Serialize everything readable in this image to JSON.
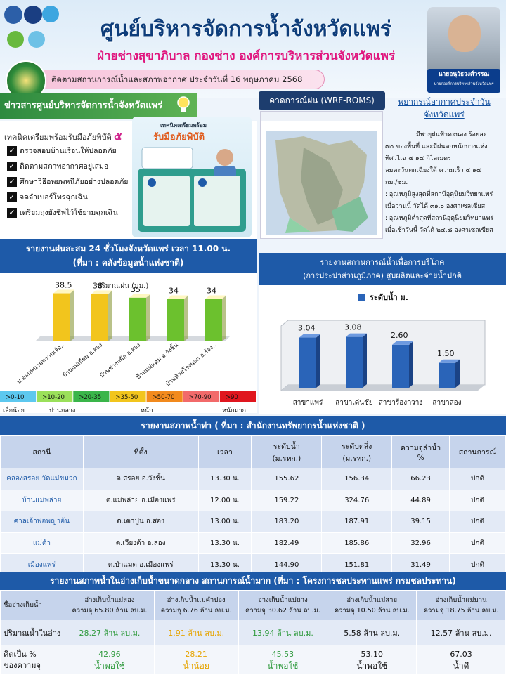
{
  "header": {
    "main_title": "ศูนย์บริหารจัดการน้ำจังหวัดแพร่",
    "sub_title": "ฝ่ายช่างสุขาภิบาล กองช่าง องค์การบริหารส่วนจังหวัดแพร่",
    "date_line": "ติดตามสถานการณ์น้ำและสภาพอากาศ ประจำวันที่ 16 พฤษภาคม 2568",
    "governor_name": "นายอนุวัธวงศ์วรรณ",
    "governor_position": "นายกองค์การบริหารส่วนจังหวัดแพร่"
  },
  "news": {
    "title": "ข่าวสารศูนย์บริหารจัดการน้ำจังหวัดแพร่",
    "intro": "เทคนิคเตรียมพร้อมรับมือภัยพิบัติ",
    "intro_num": "๕",
    "items": [
      "ตรวจสอบบ้านเรือนให้ปลอดภัย",
      "ติดตามสภาพอากาศอยู่เสมอ",
      "ศึกษาวิธีอพยพหนีภัยอย่างปลอดภัย",
      "จดจำเบอร์โทรฉุกเฉิน",
      "เตรียมถุงยังชีพไว้ใช้ยามฉุกเฉิน"
    ],
    "poster_line1": "เทคนิคเตรียมพร้อม",
    "poster_line2": "รับมือภัยพิบัติ"
  },
  "wrf": {
    "title": "คาดการณ์ฝน (WRF-ROMS)"
  },
  "forecast": {
    "title": "พยากรณ์อากาศประจำวัน จังหวัดแพร่",
    "lines": [
      "มีพายุฝนฟ้าคะนอง ร้อยละ",
      "๗๐ ของพื้นที่ และมีฝนตกหนักบางแห่ง",
      "ทิศวไเฉ ๔ ๑๕ กิโลเมตร",
      "ลมตะวันตกเฉียงใต้  ความเร็ว ๕ ๑๕",
      "กม./ชม.",
      ": อุณหภูมิสูงสุดที่สถานีอุตุนิยมวิทยาแพร่",
      "เมื่อวานนี้ วัดได้ ๓๑.๐ องศาเซลเซียส",
      ": อุณหภูมิต่ำสุดที่สถานีอุตุนิยมวิทยาแพร่",
      "เมื่อเช้าวันนี้ วัดได้ ๒๔.๘ องศาเซลเซียส"
    ]
  },
  "rain_chart": {
    "title_line1": "รายงานฝนสะสม 24 ชั่วโมงจังหวัดแพร่ เวลา 11.00 น.",
    "title_line2": "(ที่มา : คลังข้อมูลน้ำแห่งชาติ)",
    "legend": ">0-10",
    "legend_items": [
      ">0-10",
      ">10-20",
      ">20-35",
      ">35-50",
      ">50-70",
      ">70-90",
      ">90"
    ],
    "legend_groups": [
      "เล็กน้อย",
      "ปานกลาง",
      "หนัก",
      "หนักมาก"
    ]
  },
  "supply_chart": {
    "title_line1": "รายงานสถานการณ์น้ำเพื่อการบริโภค",
    "title_line2": "(การประปาส่วนภูมิภาค) สูบผลิตและจ่ายน้ำปกติ"
  },
  "chart_data": [
    {
      "type": "bar",
      "categories": [
        "บ.ดอกหนามหวานเจ้อ..",
        "บ้านแม่เกี่ยม อ.สอง",
        "บ้านช่างหม้อ อ.สอง",
        "บ้านแม่แคม อ.วังชิ้น",
        "บ้านห้วยโรงนอก อ.ร้อง.."
      ],
      "series": [
        {
          "name": "ปริมาณฝน (มม.)",
          "values": [
            38.5,
            38,
            35,
            34,
            34
          ]
        }
      ],
      "colors": [
        "#f2c51d",
        "#f2c51d",
        "#6cc12e",
        "#6cc12e",
        "#6cc12e"
      ],
      "ylim": [
        0,
        45
      ]
    },
    {
      "type": "bar",
      "categories": [
        "สาขาแพร่",
        "สาขาเด่นชัย",
        "สาขาร้องกวาง",
        "สาขาสอง"
      ],
      "series": [
        {
          "name": "ระดับน้ำ ม.",
          "values": [
            3.04,
            3.08,
            2.6,
            1.5
          ]
        }
      ],
      "value_labels": [
        "3.04",
        "3.08",
        "2.60",
        "1.50"
      ],
      "ylim": [
        0,
        4
      ]
    }
  ],
  "table1": {
    "title": "รายงานสภาพน้ำท่า  ( ที่มา : สำนักงานทรัพยากรน้ำแห่งชาติ  )",
    "headers": [
      "สถานี",
      "ที่ตั้ง",
      "เวลา",
      "ระดับน้ำ\n(ม.รทก.)",
      "ระดับตลิ่ง\n(ม.รทก.)",
      "ความจุลำน้ำ\n%",
      "สถานการณ์"
    ],
    "rows": [
      [
        "คลองสรอย วัดแม่ขมวก",
        "ต.สรอย อ.วังชิ้น",
        "13.30 น.",
        "155.62",
        "156.34",
        "66.23",
        "ปกติ"
      ],
      [
        "บ้านแม่พล่าย",
        "ต.แม่พล่าย อ.เมืองแพร่",
        "12.00 น.",
        "159.22",
        "324.76",
        "44.89",
        "ปกติ"
      ],
      [
        "ศาลเจ้าพ่อพญาอ้น",
        "ต.เตาปูน อ.สอง",
        "13.00 น.",
        "183.20",
        "187.91",
        "39.15",
        "ปกติ"
      ],
      [
        "แม่ต้า",
        "ต.เวียงต้า อ.ลอง",
        "13.30 น.",
        "182.49",
        "185.86",
        "32.96",
        "ปกติ"
      ],
      [
        "เมืองแพร่",
        "ต.ป่าแมต อ.เมืองแพร่",
        "13.30 น.",
        "144.90",
        "151.81",
        "31.49",
        "ปกติ"
      ]
    ]
  },
  "table2": {
    "title": "รายงานสภาพน้ำในอ่างเก็บน้ำขนาดกลาง  สถานการณ์น้ำมาก (ที่มา : โครงการชลประทานแพร่ กรมชลประทาน)",
    "row_heads": [
      "ชื่ออ่างเก็บน้ำ",
      "ปริมาณน้ำในอ่าง",
      "คิดเป็น %\nของความจุ"
    ],
    "columns": [
      {
        "name": "อ่างเก็บน้ำแม่สอง",
        "capacity": "ความจุ 65.80 ล้าน ลบ.ม.",
        "volume": "28.27 ล้าน ลบ.ม.",
        "percent": "42.96",
        "status": "น้ำพอใช้",
        "color": "#2e9a3c"
      },
      {
        "name": "อ่างเก็บน้ำแม่คำปอง",
        "capacity": "ความจุ 6.76 ล้าน ลบ.ม.",
        "volume": "1.91 ล้าน ลบ.ม.",
        "percent": "28.21",
        "status": "น้ำน้อย",
        "color": "#e6a400"
      },
      {
        "name": "อ่างเก็บน้ำแม่ถาง",
        "capacity": "ความจุ 30.62 ล้าน ลบ.ม.",
        "volume": "13.94 ล้าน ลบ.ม.",
        "percent": "45.53",
        "status": "น้ำพอใช้",
        "color": "#2e9a3c"
      },
      {
        "name": "อ่างเก็บน้ำแม่สาย",
        "capacity": "ความจุ 10.50 ล้าน ลบ.ม.",
        "volume": "5.58 ล้าน ลบ.ม.",
        "percent": "53.10",
        "status": "น้ำพอใช้",
        "color": "#111111"
      },
      {
        "name": "อ่างเก็บน้ำแม่มาน",
        "capacity": "ความจุ 18.75 ล้าน ลบ.ม.",
        "volume": "12.57 ล้าน ลบ.ม.",
        "percent": "67.03",
        "status": "น้ำดี",
        "color": "#111111"
      }
    ]
  }
}
